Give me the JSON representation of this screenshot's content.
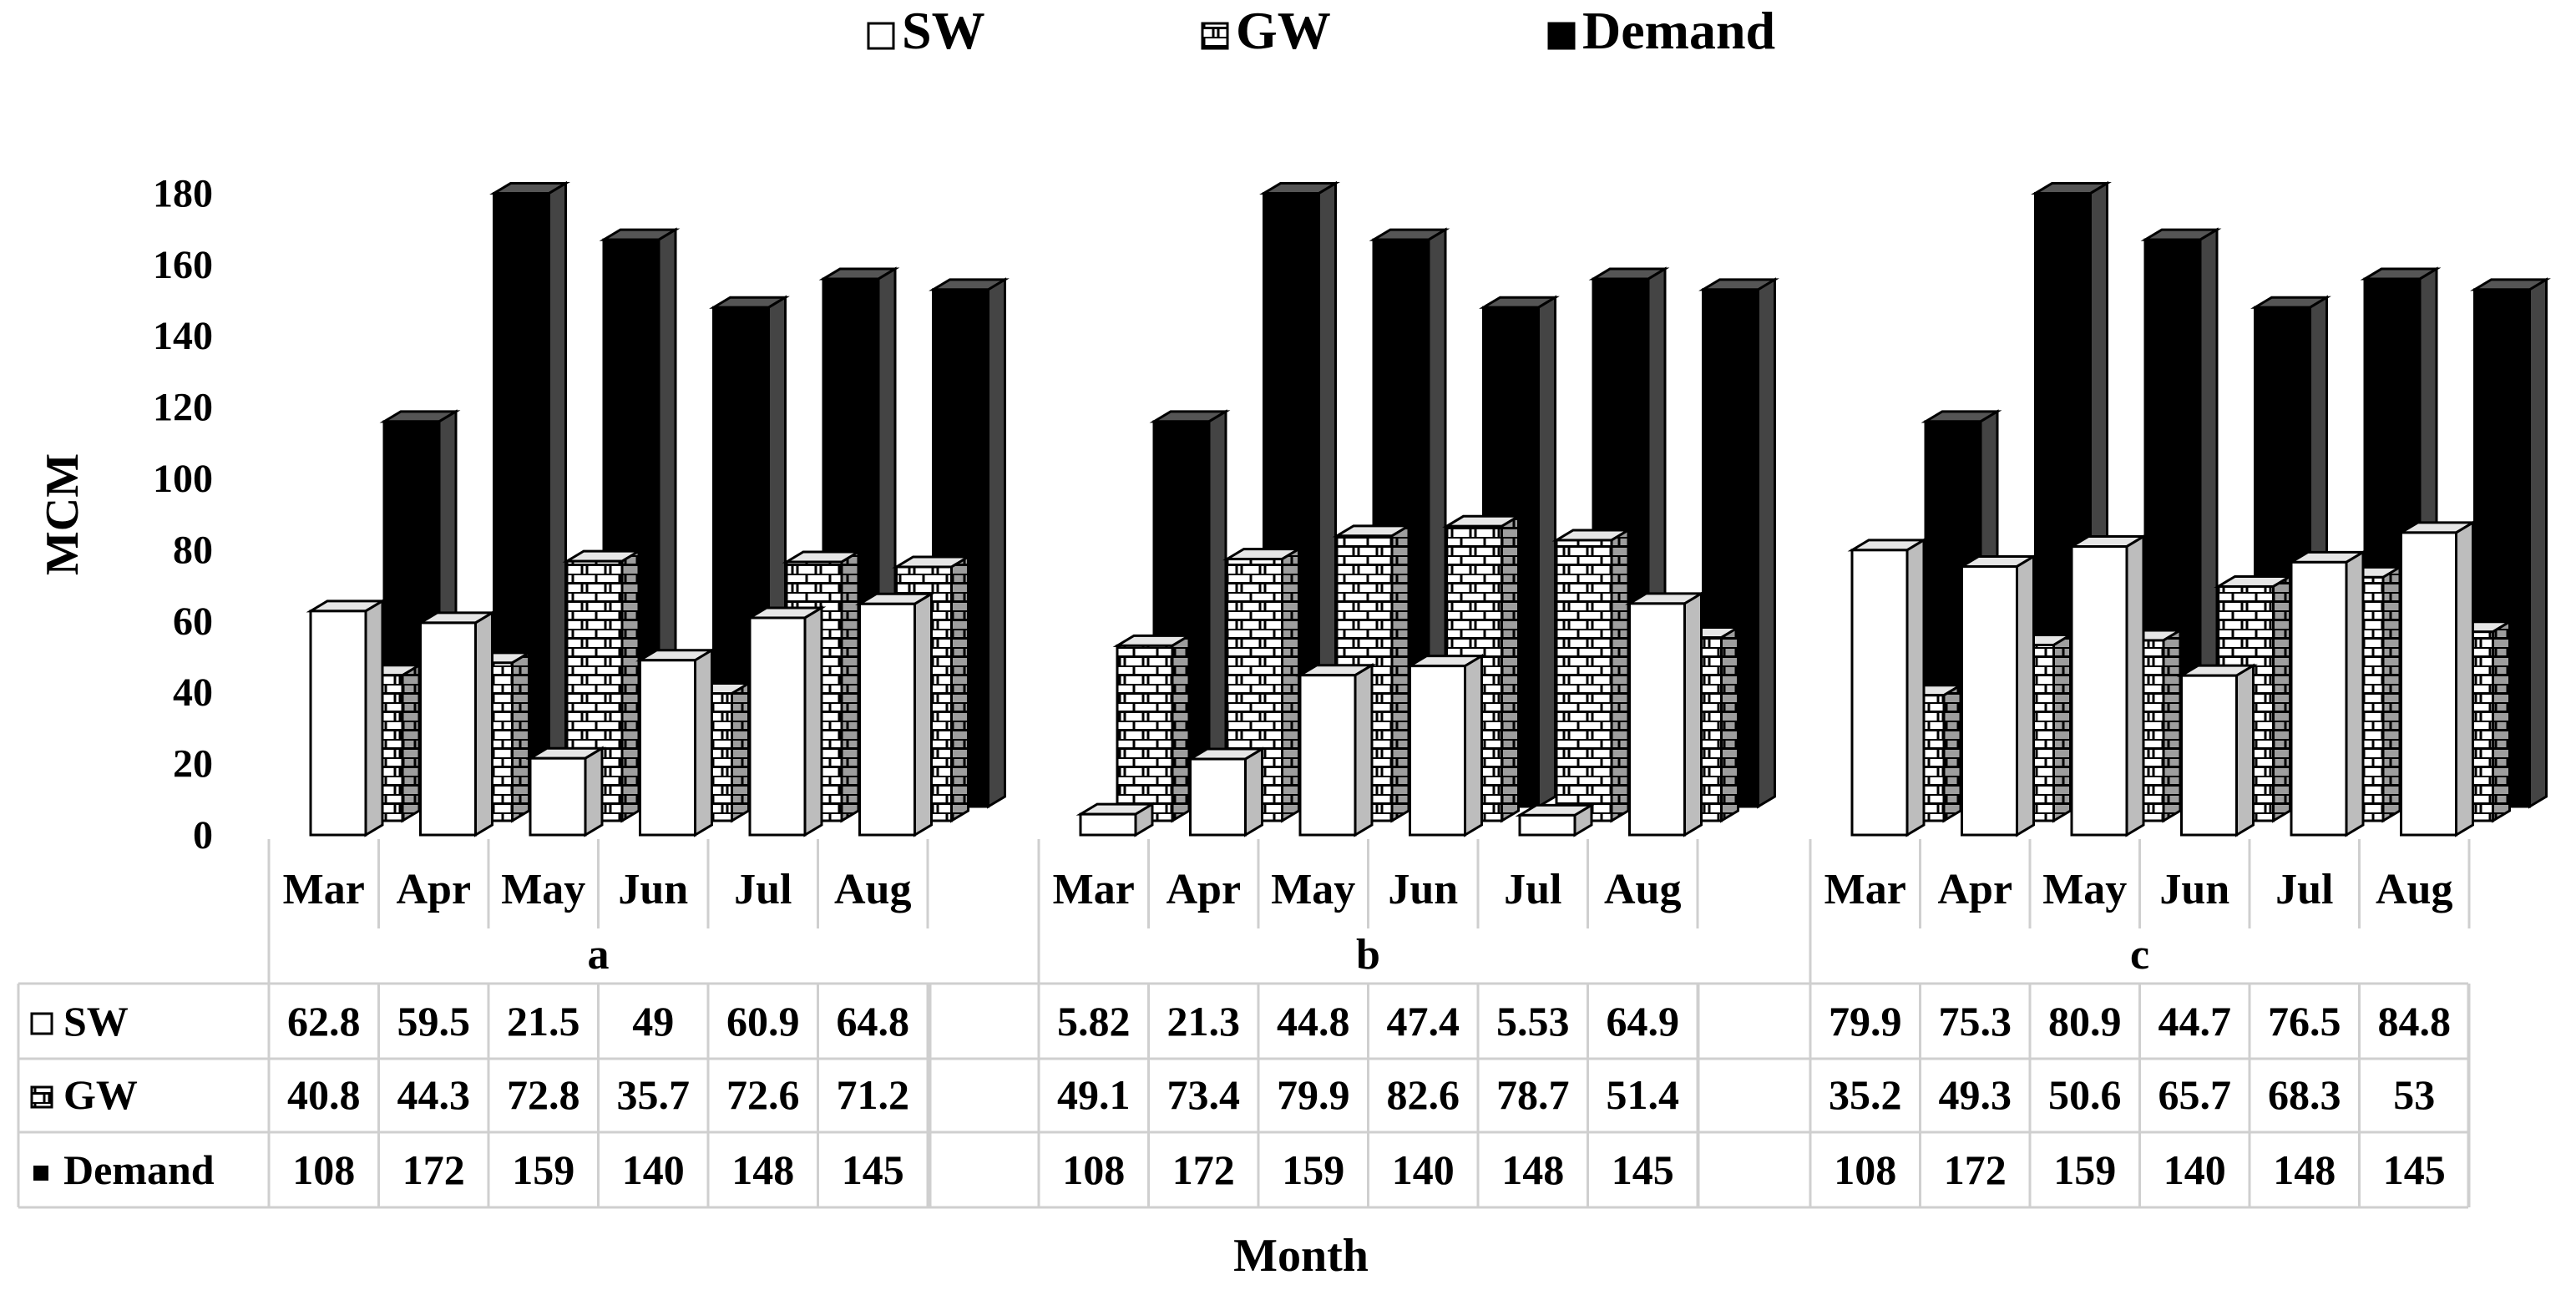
{
  "chart_data": {
    "type": "bar",
    "categories": [
      "Mar",
      "Apr",
      "May",
      "Jun",
      "Jul",
      "Aug"
    ],
    "groups": [
      "a",
      "b",
      "c"
    ],
    "series": [
      {
        "name": "SW",
        "values": {
          "a": [
            62.8,
            59.5,
            21.5,
            49,
            60.9,
            64.8
          ],
          "b": [
            5.82,
            21.3,
            44.8,
            47.4,
            5.53,
            64.9
          ],
          "c": [
            79.9,
            75.3,
            80.9,
            44.7,
            76.5,
            84.8
          ]
        }
      },
      {
        "name": "GW",
        "values": {
          "a": [
            40.8,
            44.3,
            72.8,
            35.7,
            72.6,
            71.2
          ],
          "b": [
            49.1,
            73.4,
            79.9,
            82.6,
            78.7,
            51.4
          ],
          "c": [
            35.2,
            49.3,
            50.6,
            65.7,
            68.3,
            53
          ]
        }
      },
      {
        "name": "Demand",
        "values": {
          "a": [
            108,
            172,
            159,
            140,
            148,
            145
          ],
          "b": [
            108,
            172,
            159,
            140,
            148,
            145
          ],
          "c": [
            108,
            172,
            159,
            140,
            148,
            145
          ]
        }
      }
    ],
    "table_display": {
      "SW": {
        "a": [
          "62.8",
          "59.5",
          "21.5",
          "49",
          "60.9",
          "64.8"
        ],
        "b": [
          "5.82",
          "21.3",
          "44.8",
          "47.4",
          "5.53",
          "64.9"
        ],
        "c": [
          "79.9",
          "75.3",
          "80.9",
          "44.7",
          "76.5",
          "84.8"
        ]
      },
      "GW": {
        "a": [
          "40.8",
          "44.3",
          "72.8",
          "35.7",
          "72.6",
          "71.2"
        ],
        "b": [
          "49.1",
          "73.4",
          "79.9",
          "82.6",
          "78.7",
          "51.4"
        ],
        "c": [
          "35.2",
          "49.3",
          "50.6",
          "65.7",
          "68.3",
          "53"
        ]
      },
      "Demand": {
        "a": [
          "108",
          "172",
          "159",
          "140",
          "148",
          "145"
        ],
        "b": [
          "108",
          "172",
          "159",
          "140",
          "148",
          "145"
        ],
        "c": [
          "108",
          "172",
          "159",
          "140",
          "148",
          "145"
        ]
      }
    },
    "yticks": [
      "0",
      "20",
      "40",
      "60",
      "80",
      "100",
      "120",
      "140",
      "160",
      "180"
    ],
    "ylim": [
      0,
      180
    ],
    "ylabel": "MCM",
    "xlabel": "Month",
    "legend": [
      "SW",
      "GW",
      "Demand"
    ],
    "legend_position": "top-center",
    "colors": {
      "SW": "#ffffff",
      "GW": "#ffffff",
      "Demand": "#000000",
      "side": "#bdbdbd",
      "grid": "#cfcfcf"
    },
    "icons": {
      "SW": "white-box-icon",
      "GW": "brick-pattern-icon",
      "Demand": "black-box-icon"
    }
  }
}
